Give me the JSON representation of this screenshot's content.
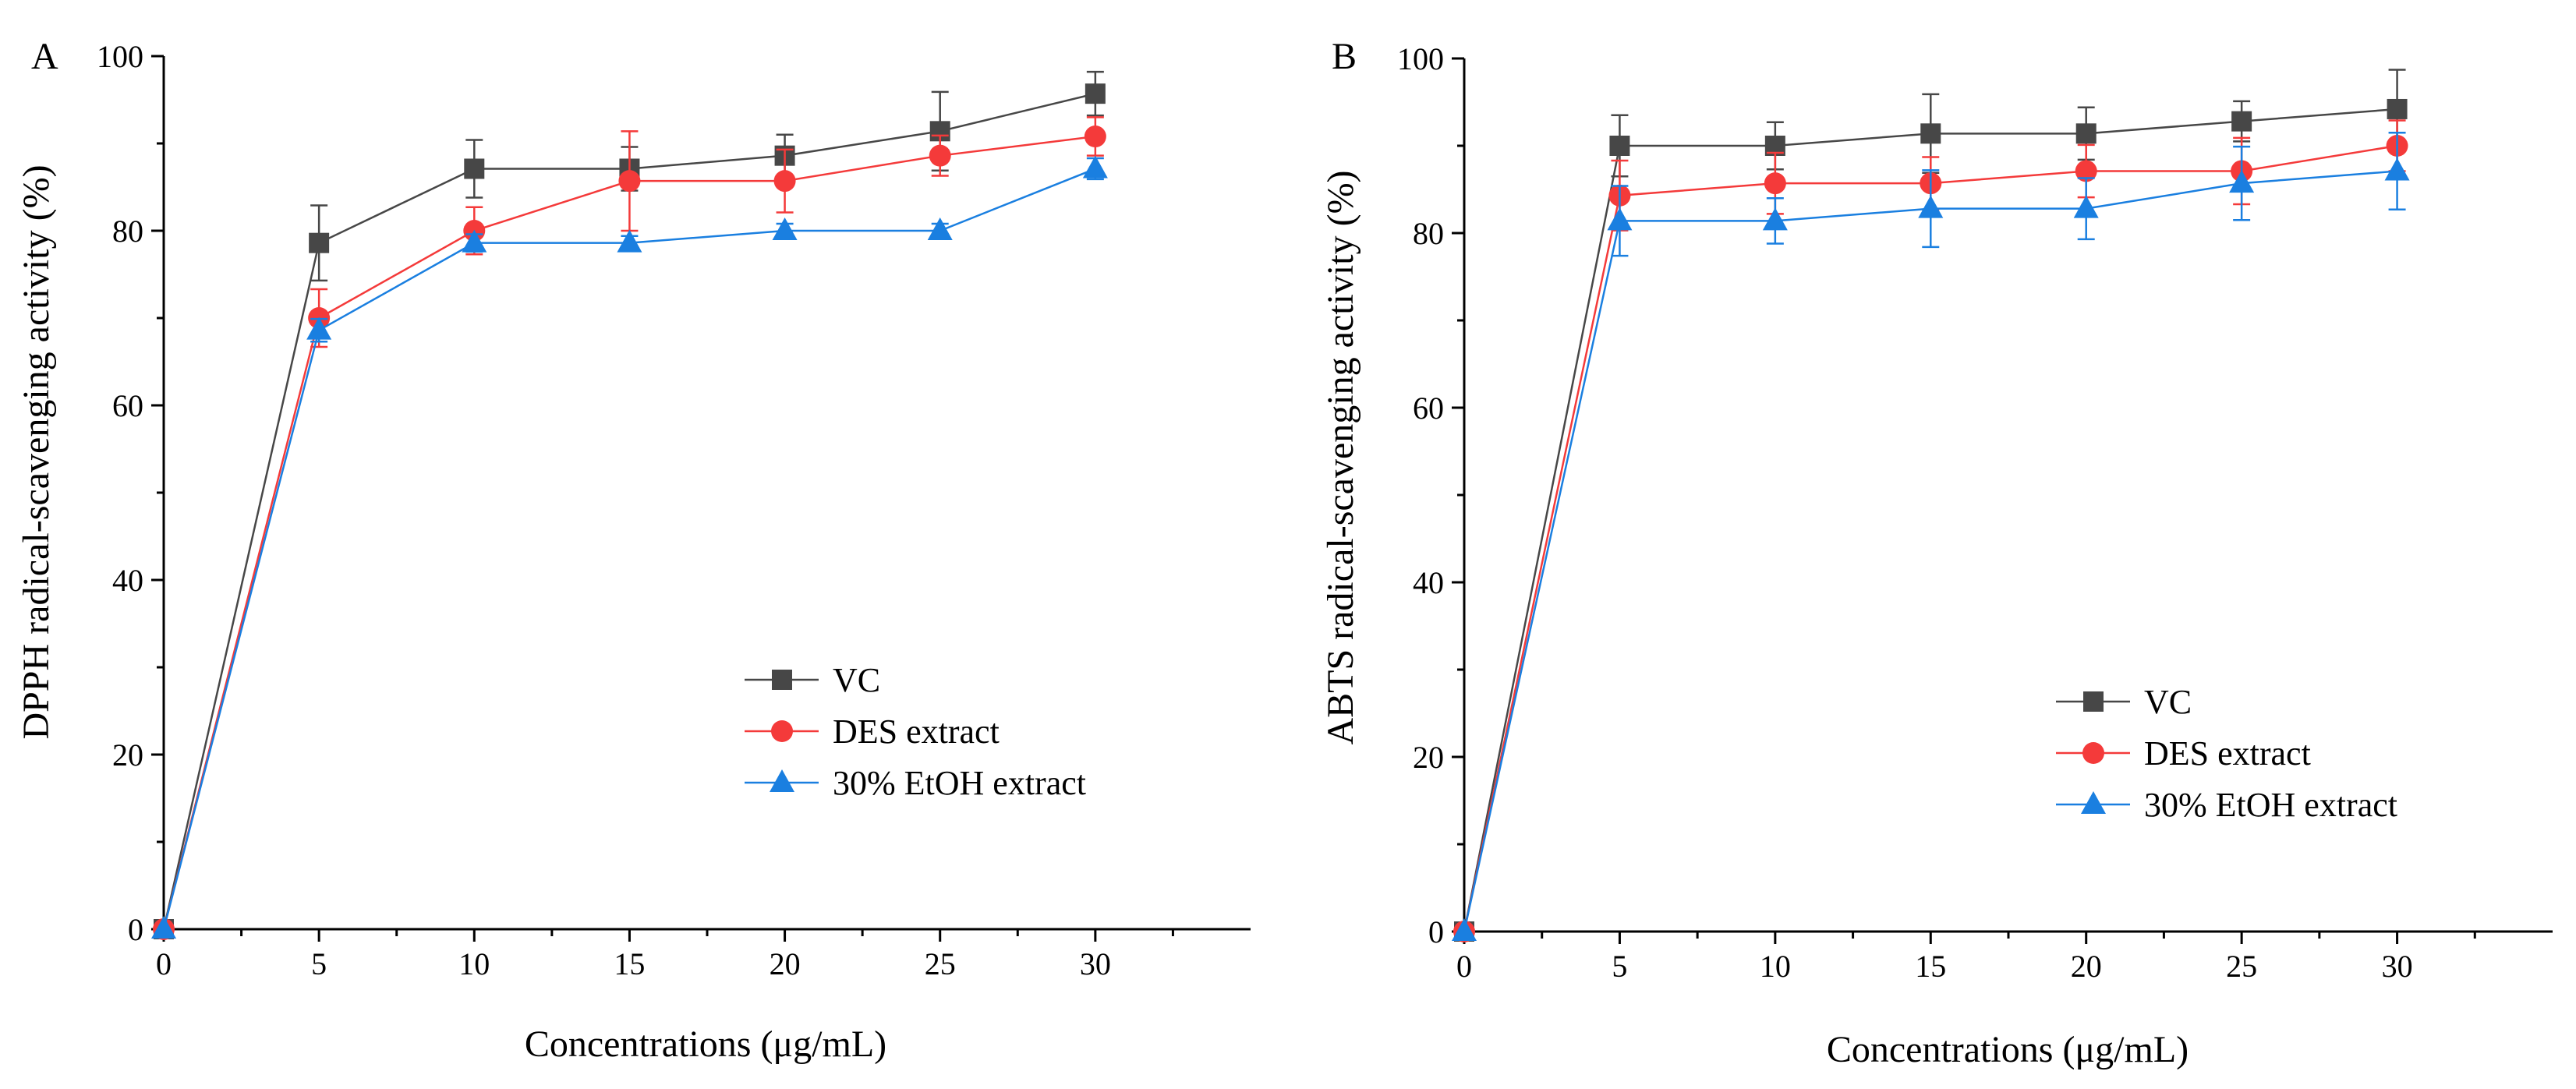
{
  "figure": {
    "colors": {
      "VC": "#474747",
      "DES extract": "#f43a3a",
      "30% EtOH extract": "#1a7fe0"
    }
  },
  "chart_data": [
    {
      "type": "line",
      "panel": "A",
      "xlabel": "Concentrations (μg/mL)",
      "ylabel": "DPPH radical-scavenging activity (%)",
      "xlim": [
        0,
        35
      ],
      "ylim": [
        0,
        100
      ],
      "xticks": [
        0,
        5,
        10,
        15,
        20,
        25,
        30
      ],
      "yticks": [
        0,
        20,
        40,
        60,
        80,
        100
      ],
      "x": [
        0,
        5,
        10,
        15,
        20,
        25,
        30
      ],
      "legend_position": "lower-right",
      "series": [
        {
          "name": "VC",
          "marker": "square",
          "color": "#474747",
          "values": [
            0,
            78.6,
            87.1,
            87.1,
            88.6,
            91.4,
            95.7
          ],
          "errors": [
            0,
            4.3,
            3.3,
            2.5,
            2.4,
            4.5,
            2.5
          ]
        },
        {
          "name": "DES extract",
          "marker": "circle",
          "color": "#f43a3a",
          "values": [
            0,
            70.0,
            80.0,
            85.7,
            85.7,
            88.6,
            90.8
          ],
          "errors": [
            0,
            3.3,
            2.7,
            5.7,
            3.6,
            2.3,
            2.2
          ]
        },
        {
          "name": "30% EtOH extract",
          "marker": "triangle",
          "color": "#1a7fe0",
          "values": [
            0,
            68.6,
            78.6,
            78.6,
            80.0,
            80.0,
            87.1
          ],
          "errors": [
            0,
            1.3,
            1.0,
            0.8,
            0.8,
            0.8,
            1.2
          ]
        }
      ]
    },
    {
      "type": "line",
      "panel": "B",
      "xlabel": "Concentrations (μg/mL)",
      "ylabel": "ABTS radical-scavenging activity (%)",
      "xlim": [
        0,
        35
      ],
      "ylim": [
        0,
        100
      ],
      "xticks": [
        0,
        5,
        10,
        15,
        20,
        25,
        30
      ],
      "yticks": [
        0,
        20,
        40,
        60,
        80,
        100
      ],
      "x": [
        0,
        5,
        10,
        15,
        20,
        25,
        30
      ],
      "legend_position": "lower-right",
      "series": [
        {
          "name": "VC",
          "marker": "square",
          "color": "#474747",
          "values": [
            0,
            90.0,
            90.0,
            91.4,
            91.4,
            92.8,
            94.2
          ],
          "errors": [
            0,
            3.5,
            2.7,
            4.5,
            3.0,
            2.3,
            4.5
          ]
        },
        {
          "name": "DES extract",
          "marker": "circle",
          "color": "#f43a3a",
          "values": [
            0,
            84.3,
            85.7,
            85.7,
            87.1,
            87.1,
            90.0
          ],
          "errors": [
            0,
            4.0,
            3.5,
            3.0,
            3.0,
            3.8,
            2.9
          ]
        },
        {
          "name": "30% EtOH extract",
          "marker": "triangle",
          "color": "#1a7fe0",
          "values": [
            0,
            81.4,
            81.4,
            82.8,
            82.8,
            85.7,
            87.1
          ],
          "errors": [
            0,
            4.0,
            2.6,
            4.4,
            3.5,
            4.2,
            4.4
          ]
        }
      ]
    }
  ]
}
